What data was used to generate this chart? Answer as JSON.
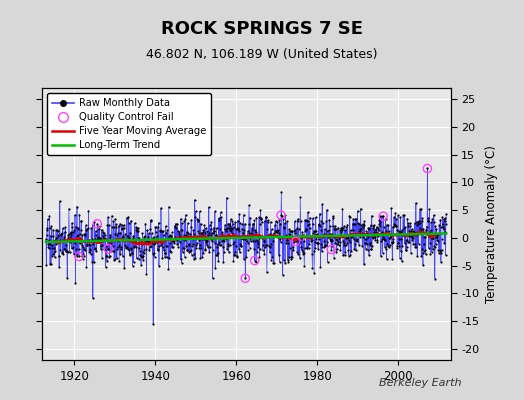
{
  "title": "ROCK SPRINGS 7 SE",
  "subtitle": "46.802 N, 106.189 W (United States)",
  "ylabel_right": "Temperature Anomaly (°C)",
  "credit": "Berkeley Earth",
  "year_start": 1913,
  "year_end": 2012,
  "ylim": [
    -22,
    27
  ],
  "yticks": [
    -20,
    -15,
    -10,
    -5,
    0,
    5,
    10,
    15,
    20,
    25
  ],
  "xlim_start": 1912,
  "xlim_end": 2013,
  "xticks": [
    1920,
    1940,
    1960,
    1980,
    2000
  ],
  "bg_color": "#d8d8d8",
  "plot_bg_color": "#e8e8e8",
  "raw_line_color": "#4444ff",
  "raw_marker_color": "#000000",
  "qc_fail_color": "#ff44ff",
  "moving_avg_color": "#dd0000",
  "trend_color": "#00bb00",
  "grid_color": "#c8c8c8",
  "title_fontsize": 13,
  "subtitle_fontsize": 9,
  "seed": 17
}
